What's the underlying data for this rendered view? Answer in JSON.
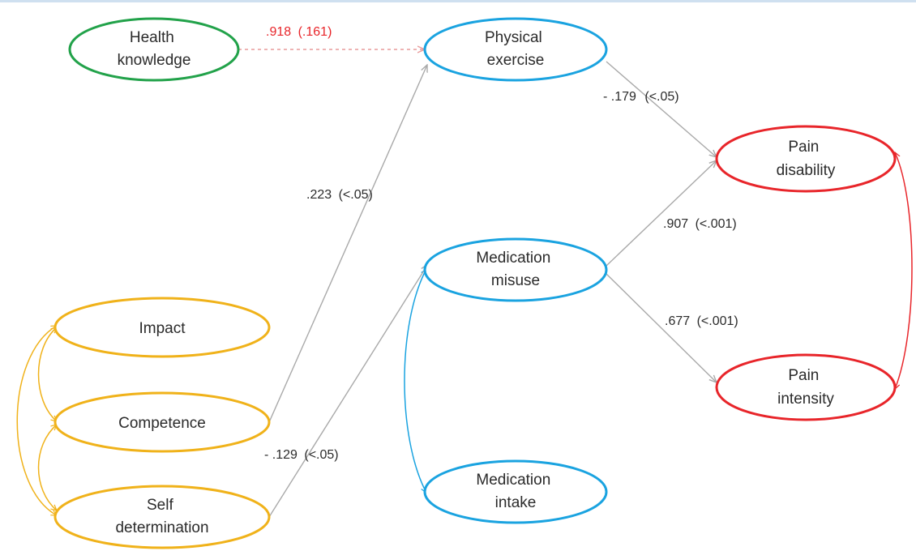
{
  "nodes": [
    {
      "id": "health-knowledge",
      "lines": [
        "Health",
        "knowledge"
      ],
      "color": "#22a24a"
    },
    {
      "id": "physical-exercise",
      "lines": [
        "Physical",
        "exercise"
      ],
      "color": "#1aa3e0"
    },
    {
      "id": "pain-disability",
      "lines": [
        "Pain",
        "disability"
      ],
      "color": "#e8252a"
    },
    {
      "id": "medication-misuse",
      "lines": [
        "Medication",
        "misuse"
      ],
      "color": "#1aa3e0"
    },
    {
      "id": "impact",
      "lines": [
        "Impact"
      ],
      "color": "#f0b21a"
    },
    {
      "id": "pain-intensity",
      "lines": [
        "Pain",
        "intensity"
      ],
      "color": "#e8252a"
    },
    {
      "id": "competence",
      "lines": [
        "Competence"
      ],
      "color": "#f0b21a"
    },
    {
      "id": "medication-intake",
      "lines": [
        "Medication",
        "intake"
      ],
      "color": "#1aa3e0"
    },
    {
      "id": "self-determination",
      "lines": [
        "Self",
        "determination"
      ],
      "color": "#f0b21a"
    }
  ],
  "edges": [
    {
      "id": "hk-pe",
      "from": "health-knowledge",
      "to": "physical-exercise",
      "style": "dashed",
      "color": "#e89a9a",
      "label": {
        "coef": ".918",
        "p": "(.161)",
        "coef_color": "#e8252a",
        "p_color": "#e8252a"
      }
    },
    {
      "id": "pe-pd",
      "from": "physical-exercise",
      "to": "pain-disability",
      "style": "solid",
      "color": "#a9a9a9",
      "label": {
        "coef": "- .179",
        "p": "(<.05)"
      }
    },
    {
      "id": "comp-pe",
      "from": "competence",
      "to": "physical-exercise",
      "style": "solid",
      "color": "#a9a9a9",
      "label": {
        "coef": ".223",
        "p": "(<.05)"
      }
    },
    {
      "id": "mm-pd",
      "from": "medication-misuse",
      "to": "pain-disability",
      "style": "solid",
      "color": "#a9a9a9",
      "label": {
        "coef": ".907",
        "p": "(<.001)"
      }
    },
    {
      "id": "mm-pi",
      "from": "medication-misuse",
      "to": "pain-intensity",
      "style": "solid",
      "color": "#a9a9a9",
      "label": {
        "coef": ".677",
        "p": "(<.001)"
      }
    },
    {
      "id": "sd-mm",
      "from": "self-determination",
      "to": "medication-misuse",
      "style": "solid",
      "color": "#a9a9a9",
      "label": {
        "coef": "- .129",
        "p": "(<.05)"
      }
    }
  ],
  "covariances": [
    {
      "id": "pd-pi",
      "from": "pain-disability",
      "to": "pain-intensity",
      "color": "#e8252a"
    },
    {
      "id": "mm-mi",
      "from": "medication-misuse",
      "to": "medication-intake",
      "color": "#1aa3e0"
    },
    {
      "id": "imp-comp",
      "from": "impact",
      "to": "competence",
      "color": "#f0b21a"
    },
    {
      "id": "comp-sd",
      "from": "competence",
      "to": "self-determination",
      "color": "#f0b21a"
    },
    {
      "id": "imp-sd",
      "from": "impact",
      "to": "self-determination",
      "color": "#f0b21a"
    }
  ]
}
